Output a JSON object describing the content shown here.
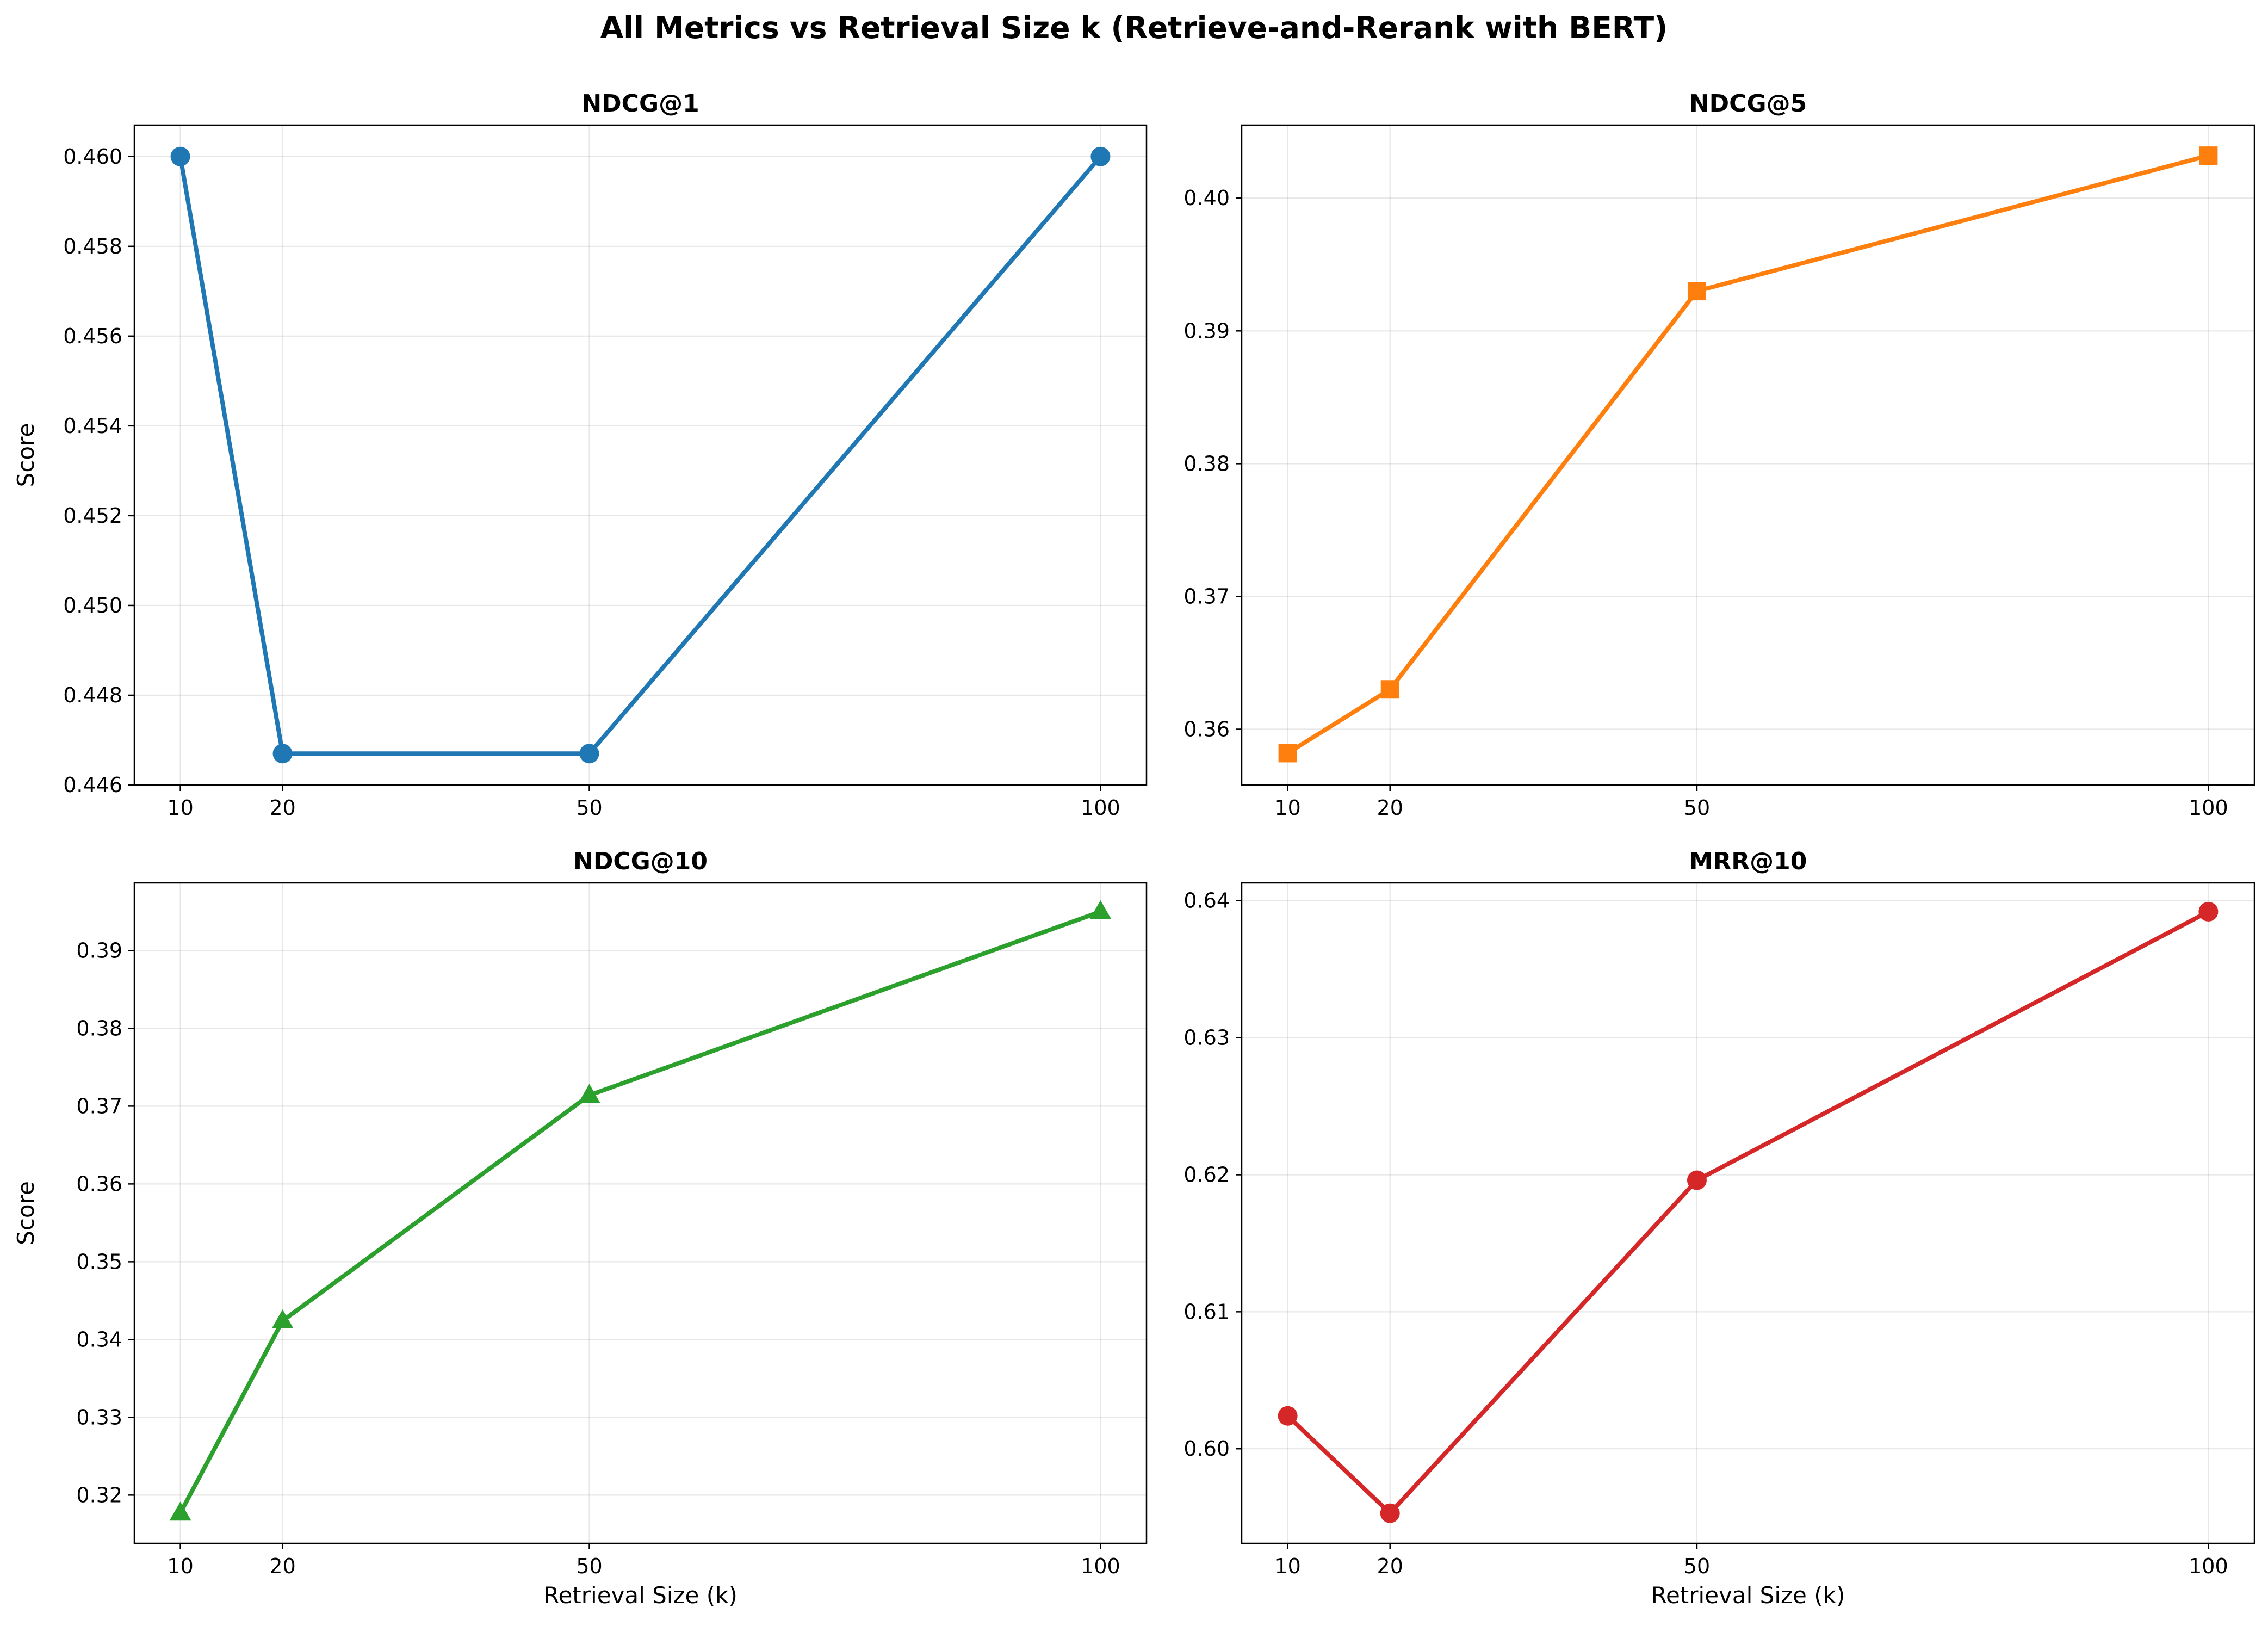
{
  "figure": {
    "suptitle": "All Metrics vs Retrieval Size k (Retrieve-and-Rerank with BERT)"
  },
  "chart_data": [
    {
      "type": "line",
      "title": "NDCG@1",
      "xlabel": "",
      "ylabel": "Score",
      "x": [
        10,
        20,
        50,
        100
      ],
      "xticks": [
        "10",
        "20",
        "50",
        "100"
      ],
      "ylim": [
        0.446,
        0.4607
      ],
      "yticks": [
        0.446,
        0.448,
        0.45,
        0.452,
        0.454,
        0.456,
        0.458,
        0.46
      ],
      "ytick_labels": [
        "0.446",
        "0.448",
        "0.450",
        "0.452",
        "0.454",
        "0.456",
        "0.458",
        "0.460"
      ],
      "series": [
        {
          "values": [
            0.46,
            0.4467,
            0.4467,
            0.46
          ],
          "color": "#1f77b4",
          "marker": "circle"
        }
      ],
      "grid": true
    },
    {
      "type": "line",
      "title": "NDCG@5",
      "xlabel": "",
      "ylabel": "",
      "x": [
        10,
        20,
        50,
        100
      ],
      "xticks": [
        "10",
        "20",
        "50",
        "100"
      ],
      "ylim": [
        0.3558,
        0.4055
      ],
      "yticks": [
        0.36,
        0.37,
        0.38,
        0.39,
        0.4
      ],
      "ytick_labels": [
        "0.36",
        "0.37",
        "0.38",
        "0.39",
        "0.40"
      ],
      "series": [
        {
          "values": [
            0.3582,
            0.363,
            0.393,
            0.4032
          ],
          "color": "#ff7f0e",
          "marker": "square"
        }
      ],
      "grid": true
    },
    {
      "type": "line",
      "title": "NDCG@10",
      "xlabel": "Retrieval Size (k)",
      "ylabel": "Score",
      "x": [
        10,
        20,
        50,
        100
      ],
      "xticks": [
        "10",
        "20",
        "50",
        "100"
      ],
      "ylim": [
        0.3138,
        0.3987
      ],
      "yticks": [
        0.32,
        0.33,
        0.34,
        0.35,
        0.36,
        0.37,
        0.38,
        0.39
      ],
      "ytick_labels": [
        "0.32",
        "0.33",
        "0.34",
        "0.35",
        "0.36",
        "0.37",
        "0.38",
        "0.39"
      ],
      "series": [
        {
          "values": [
            0.3177,
            0.3424,
            0.3714,
            0.395
          ],
          "color": "#2ca02c",
          "marker": "triangle"
        }
      ],
      "grid": true
    },
    {
      "type": "line",
      "title": "MRR@10",
      "xlabel": "Retrieval Size (k)",
      "ylabel": "",
      "x": [
        10,
        20,
        50,
        100
      ],
      "xticks": [
        "10",
        "20",
        "50",
        "100"
      ],
      "ylim": [
        0.5931,
        0.6413
      ],
      "yticks": [
        0.6,
        0.61,
        0.62,
        0.63,
        0.64
      ],
      "ytick_labels": [
        "0.60",
        "0.61",
        "0.62",
        "0.63",
        "0.64"
      ],
      "series": [
        {
          "values": [
            0.6024,
            0.5953,
            0.6196,
            0.6392
          ],
          "color": "#d62728",
          "marker": "circle"
        }
      ],
      "grid": true
    }
  ]
}
